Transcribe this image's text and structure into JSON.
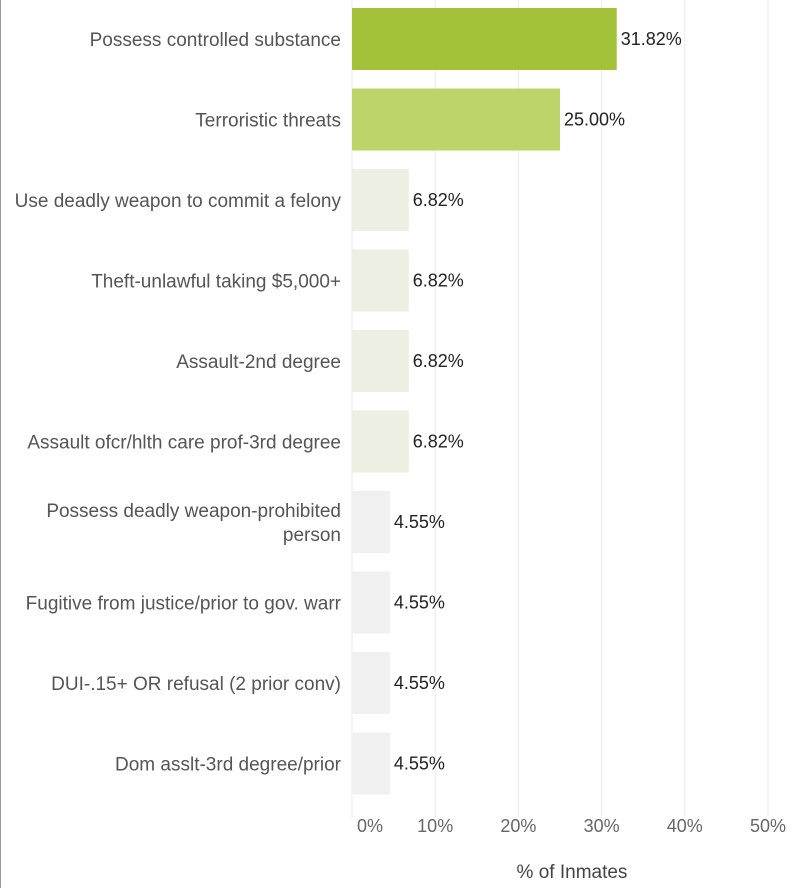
{
  "chart_data": {
    "type": "bar",
    "orientation": "horizontal",
    "categories": [
      "Possess controlled substance",
      "Terroristic threats",
      "Use deadly weapon to commit a felony",
      "Theft-unlawful taking $5,000+",
      "Assault-2nd degree",
      "Assault ofcr/hlth care prof-3rd degree",
      "Possess deadly weapon-prohibited person",
      "Fugitive from justice/prior to gov. warr",
      "DUI-.15+ OR refusal (2 prior conv)",
      "Dom asslt-3rd degree/prior"
    ],
    "values": [
      31.82,
      25.0,
      6.82,
      6.82,
      6.82,
      6.82,
      4.55,
      4.55,
      4.55,
      4.55
    ],
    "value_labels": [
      "31.82%",
      "25.00%",
      "6.82%",
      "6.82%",
      "6.82%",
      "6.82%",
      "4.55%",
      "4.55%",
      "4.55%",
      "4.55%"
    ],
    "bar_colors": [
      "#a4c13a",
      "#bcd46a",
      "#ecefe2",
      "#ecefe2",
      "#ecefe2",
      "#ecefe2",
      "#f0f0f0",
      "#f0f0f0",
      "#f0f0f0",
      "#f0f0f0"
    ],
    "xlabel": "% of Inmates",
    "ylabel": "",
    "title": "",
    "xlim": [
      0,
      50
    ],
    "xticks": [
      0,
      10,
      20,
      30,
      40,
      50
    ],
    "xtick_labels": [
      "0%",
      "10%",
      "20%",
      "30%",
      "40%",
      "50%"
    ],
    "grid": "vertical"
  }
}
